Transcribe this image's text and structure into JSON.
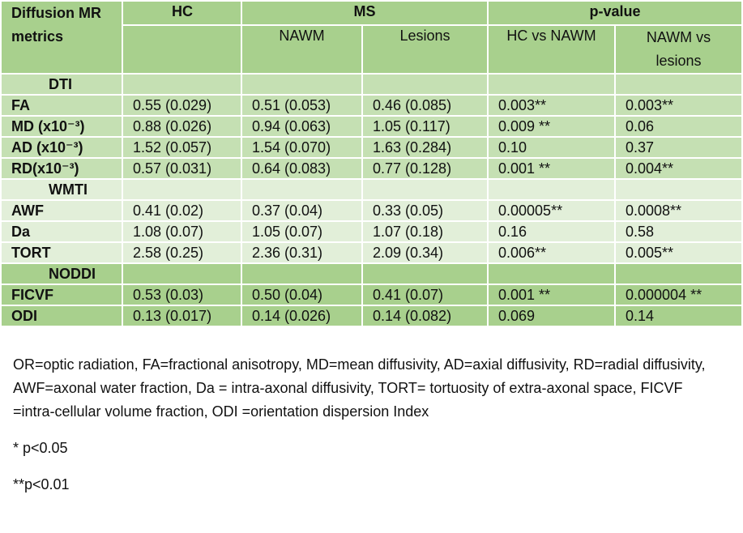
{
  "table": {
    "header": {
      "metric": "Diffusion MR metrics",
      "hc": "HC",
      "ms": "MS",
      "p_value": "p-value",
      "sub": [
        "NAWM",
        "Lesions",
        "HC vs NAWM",
        "NAWM vs lesions"
      ]
    },
    "groups": [
      {
        "name": "DTI",
        "rows": [
          [
            "FA",
            "0.55 (0.029)",
            "0.51 (0.053)",
            "0.46 (0.085)",
            "0.003**",
            "0.003**"
          ],
          [
            "MD (x10⁻³)",
            "0.88 (0.026)",
            "0.94 (0.063)",
            "1.05 (0.117)",
            "0.009 **",
            "0.06"
          ],
          [
            "AD (x10⁻³)",
            "1.52 (0.057)",
            "1.54 (0.070)",
            "1.63 (0.284)",
            "0.10",
            "0.37"
          ],
          [
            "RD(x10⁻³)",
            "0.57 (0.031)",
            "0.64 (0.083)",
            "0.77 (0.128)",
            "0.001 **",
            "0.004**"
          ]
        ]
      },
      {
        "name": "WMTI",
        "rows": [
          [
            "AWF",
            "0.41 (0.02)",
            "0.37 (0.04)",
            "0.33 (0.05)",
            "0.00005**",
            "0.0008**"
          ],
          [
            "Da",
            "1.08 (0.07)",
            "1.05 (0.07)",
            "1.07 (0.18)",
            "0.16",
            "0.58"
          ],
          [
            "TORT",
            "2.58 (0.25)",
            "2.36 (0.31)",
            "2.09 (0.34)",
            "0.006**",
            "0.005**"
          ]
        ]
      },
      {
        "name": "NODDI",
        "rows": [
          [
            "FICVF",
            "0.53 (0.03)",
            "0.50 (0.04)",
            "0.41 (0.07)",
            "0.001 **",
            "0.000004 **"
          ],
          [
            "ODI",
            "0.13 (0.017)",
            "0.14 (0.026)",
            "0.14 (0.082)",
            "0.069",
            "0.14"
          ]
        ]
      }
    ]
  },
  "notes": [
    "OR=optic radiation, FA=fractional anisotropy, MD=mean diffusivity, AD=axial diffusivity, RD=radial diffusivity, AWF=axonal water fraction, Da = intra-axonal diffusivity, TORT= tortuosity of extra-axonal space, FICVF =intra-cellular volume fraction, ODI =orientation dispersion Index",
    "* p<0.05",
    "**p<0.01"
  ]
}
